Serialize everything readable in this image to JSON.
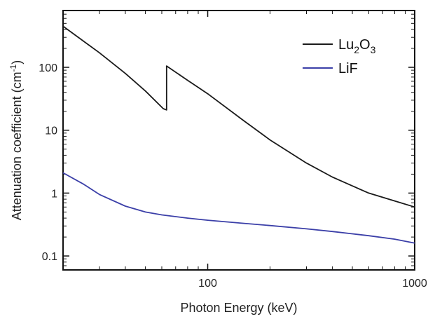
{
  "chart_data": {
    "type": "line",
    "xlabel": "Photon Energy (keV)",
    "ylabel_main": "Attenuation coefficient (cm",
    "ylabel_sup": "-1",
    "ylabel_close": ")",
    "xscale": "log",
    "yscale": "log",
    "xlim": [
      20,
      1000
    ],
    "ylim": [
      0.06,
      800
    ],
    "x_ticks": [
      {
        "value": 100,
        "label": "100"
      },
      {
        "value": 1000,
        "label": "1000"
      }
    ],
    "y_ticks": [
      {
        "value": 0.1,
        "label": "0.1"
      },
      {
        "value": 1,
        "label": "1"
      },
      {
        "value": 10,
        "label": "10"
      },
      {
        "value": 100,
        "label": "100"
      }
    ],
    "grid": false,
    "legend_position": "top-right",
    "series": [
      {
        "name_parts": [
          "Lu",
          "2",
          "O",
          "3"
        ],
        "color": "#1a1a1a",
        "points": [
          [
            20,
            450
          ],
          [
            30,
            170
          ],
          [
            40,
            80
          ],
          [
            50,
            42
          ],
          [
            61,
            22
          ],
          [
            63.3,
            21
          ],
          [
            63.3,
            105
          ],
          [
            80,
            62
          ],
          [
            100,
            38
          ],
          [
            150,
            14
          ],
          [
            200,
            7
          ],
          [
            300,
            3
          ],
          [
            400,
            1.8
          ],
          [
            500,
            1.3
          ],
          [
            600,
            1.0
          ],
          [
            800,
            0.75
          ],
          [
            1000,
            0.6
          ]
        ]
      },
      {
        "name": "LiF",
        "color": "#3b3fa8",
        "points": [
          [
            20,
            2.1
          ],
          [
            25,
            1.4
          ],
          [
            30,
            0.95
          ],
          [
            40,
            0.62
          ],
          [
            50,
            0.5
          ],
          [
            60,
            0.45
          ],
          [
            80,
            0.4
          ],
          [
            100,
            0.37
          ],
          [
            150,
            0.33
          ],
          [
            200,
            0.305
          ],
          [
            300,
            0.27
          ],
          [
            400,
            0.245
          ],
          [
            500,
            0.225
          ],
          [
            600,
            0.21
          ],
          [
            800,
            0.185
          ],
          [
            1000,
            0.16
          ]
        ]
      }
    ]
  }
}
